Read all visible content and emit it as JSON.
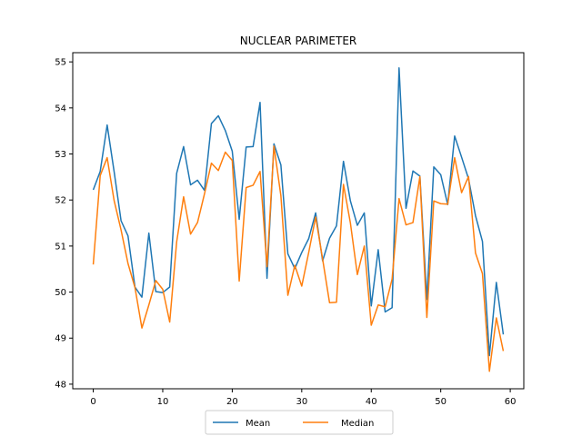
{
  "chart_data": {
    "type": "line",
    "title": "NUCLEAR PARIMETER",
    "xlabel": "",
    "ylabel": "",
    "xlim": [
      -2.95,
      61.95
    ],
    "ylim": [
      47.9,
      55.2
    ],
    "xticks": [
      0,
      10,
      20,
      30,
      40,
      50,
      60
    ],
    "yticks": [
      48,
      49,
      50,
      51,
      52,
      53,
      54,
      55
    ],
    "grid": false,
    "legend_position": "bottom-center",
    "x": [
      0,
      1,
      2,
      3,
      4,
      5,
      6,
      7,
      8,
      9,
      10,
      11,
      12,
      13,
      14,
      15,
      16,
      17,
      18,
      19,
      20,
      21,
      22,
      23,
      24,
      25,
      26,
      27,
      28,
      29,
      30,
      31,
      32,
      33,
      34,
      35,
      36,
      37,
      38,
      39,
      40,
      41,
      42,
      43,
      44,
      45,
      46,
      47,
      48,
      49,
      50,
      51,
      52,
      53,
      54,
      55,
      56,
      57,
      58,
      59
    ],
    "series": [
      {
        "name": "Mean",
        "color": "#1f77b4",
        "values": [
          52.22,
          52.62,
          53.63,
          52.62,
          51.55,
          51.22,
          50.11,
          49.89,
          51.28,
          50.01,
          49.99,
          50.11,
          52.58,
          53.16,
          52.33,
          52.43,
          52.21,
          53.66,
          53.83,
          53.51,
          53.06,
          51.58,
          53.15,
          53.16,
          54.12,
          50.3,
          53.22,
          52.76,
          50.83,
          50.51,
          50.86,
          51.16,
          51.72,
          50.68,
          51.17,
          51.44,
          52.84,
          51.98,
          51.45,
          51.72,
          49.7,
          50.92,
          49.57,
          49.66,
          54.87,
          51.82,
          52.63,
          52.52,
          49.84,
          52.72,
          52.55,
          51.9,
          53.39,
          52.93,
          52.46,
          51.66,
          51.1,
          48.62,
          50.21,
          49.08
        ]
      },
      {
        "name": "Median",
        "color": "#ff7f0e",
        "values": [
          50.6,
          52.53,
          52.92,
          51.99,
          51.35,
          50.62,
          50.1,
          49.22,
          49.72,
          50.25,
          50.06,
          49.35,
          51.09,
          52.07,
          51.26,
          51.51,
          52.13,
          52.8,
          52.64,
          53.04,
          52.86,
          50.24,
          52.27,
          52.32,
          52.62,
          50.55,
          53.17,
          52.09,
          49.93,
          50.58,
          50.13,
          50.86,
          51.63,
          50.72,
          49.77,
          49.78,
          52.34,
          51.5,
          50.38,
          51.0,
          49.28,
          49.72,
          49.68,
          50.28,
          52.03,
          51.46,
          51.51,
          52.51,
          49.45,
          51.98,
          51.92,
          51.91,
          52.92,
          52.16,
          52.51,
          50.85,
          50.4,
          48.28,
          49.44,
          48.72
        ]
      }
    ]
  }
}
